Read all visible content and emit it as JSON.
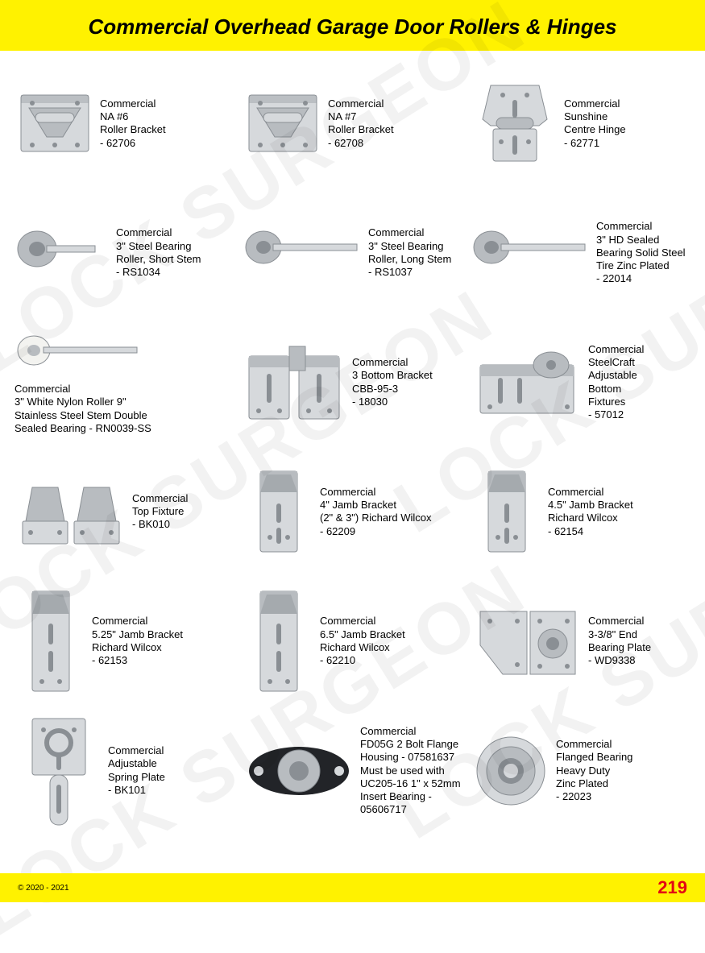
{
  "page": {
    "title": "Commercial Overhead Garage Door Rollers & Hinges",
    "copyright": "© 2020 - 2021",
    "page_number": "219",
    "header_bg": "#fff200",
    "footer_bg": "#fff200",
    "pagenum_color": "#e30613",
    "watermark_text": "LOCK SURGEON"
  },
  "metals": {
    "steel_light": "#d6d9dc",
    "steel_mid": "#b8bcc0",
    "steel_dark": "#8a8f94",
    "shadow": "#6b7075",
    "nylon": "#f3f3f0",
    "black": "#222428"
  },
  "products": [
    {
      "id": "p01",
      "image": "bracket-rivet",
      "lines": [
        "Commercial",
        "NA #6",
        "Roller Bracket",
        "- 62706"
      ]
    },
    {
      "id": "p02",
      "image": "bracket-rivet",
      "lines": [
        "Commercial",
        "NA #7",
        "Roller Bracket",
        "- 62708"
      ]
    },
    {
      "id": "p03",
      "image": "centre-hinge",
      "lines": [
        "Commercial",
        "Sunshine",
        "Centre Hinge",
        "- 62771"
      ]
    },
    {
      "id": "p04",
      "image": "roller-short",
      "lines": [
        "Commercial",
        "3\" Steel Bearing",
        "Roller, Short Stem",
        "- RS1034"
      ]
    },
    {
      "id": "p05",
      "image": "roller-long",
      "lines": [
        "Commercial",
        "3\" Steel Bearing",
        "Roller, Long Stem",
        "- RS1037"
      ]
    },
    {
      "id": "p06",
      "image": "roller-long",
      "lines": [
        "Commercial",
        "3\" HD Sealed",
        "Bearing Solid Steel",
        "Tire Zinc Plated",
        "- 22014"
      ]
    },
    {
      "id": "p07",
      "image": "roller-nylon",
      "layout": "stack",
      "lines": [
        "Commercial",
        "3\" White Nylon Roller 9\"",
        "Stainless Steel Stem Double",
        "Sealed Bearing - RN0039-SS"
      ]
    },
    {
      "id": "p08",
      "image": "bottom-bracket-pair",
      "lines": [
        "Commercial",
        "3 Bottom Bracket",
        "CBB-95-3",
        "- 18030"
      ]
    },
    {
      "id": "p09",
      "image": "adjustable-bottom",
      "lines": [
        "Commercial",
        "SteelCraft",
        "Adjustable",
        "Bottom",
        "Fixtures",
        "- 57012"
      ]
    },
    {
      "id": "p10",
      "image": "top-fixture-pair",
      "lines": [
        "Commercial",
        "Top Fixture",
        "- BK010"
      ]
    },
    {
      "id": "p11",
      "image": "jamb-bracket",
      "lines": [
        "Commercial",
        "4\" Jamb Bracket",
        "(2\" & 3\") Richard Wilcox",
        "- 62209"
      ]
    },
    {
      "id": "p12",
      "image": "jamb-bracket",
      "lines": [
        "Commercial",
        "4.5\" Jamb Bracket",
        "Richard Wilcox",
        "- 62154"
      ]
    },
    {
      "id": "p13",
      "image": "jamb-bracket-tall",
      "lines": [
        "Commercial",
        "5.25\" Jamb Bracket",
        "Richard Wilcox",
        "- 62153"
      ]
    },
    {
      "id": "p14",
      "image": "jamb-bracket-tall",
      "lines": [
        "Commercial",
        "6.5\" Jamb Bracket",
        "Richard Wilcox",
        "- 62210"
      ]
    },
    {
      "id": "p15",
      "image": "end-bearing-plate",
      "lines": [
        "Commercial",
        "3-3/8\" End",
        "Bearing Plate",
        "- WD9338"
      ]
    },
    {
      "id": "p16",
      "image": "spring-plate",
      "lines": [
        "Commercial",
        "Adjustable",
        "Spring Plate",
        "- BK101"
      ]
    },
    {
      "id": "p17",
      "image": "flange-housing",
      "lines": [
        "Commercial",
        "FD05G 2 Bolt Flange",
        "Housing - 07581637",
        "Must be used with",
        "UC205-16 1\" x 52mm",
        "Insert Bearing - 05606717"
      ]
    },
    {
      "id": "p18",
      "image": "flanged-bearing",
      "lines": [
        "Commercial",
        "Flanged Bearing",
        "Heavy Duty",
        "Zinc Plated",
        "- 22023"
      ]
    }
  ]
}
